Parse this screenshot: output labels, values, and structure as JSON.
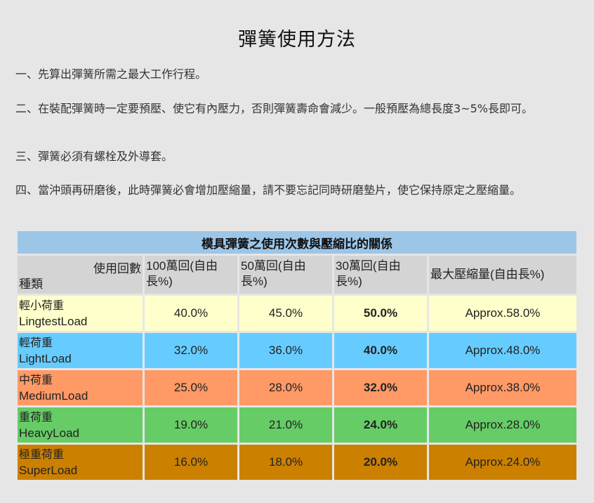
{
  "title": "彈簧使用方法",
  "paragraphs": [
    "一、先算出彈簧所需之最大工作行程。",
    "二、在裝配彈簧時一定要預壓、使它有內壓力，否則彈簧壽命會減少。一般預壓為總長度3~5%長即可。",
    "三、彈簧必須有螺栓及外導套。",
    "四、當沖頭再研磨後，此時彈簧必會增加壓縮量，請不要忘記同時研磨墊片，使它保持原定之壓縮量。"
  ],
  "table": {
    "caption": "模具彈簧之使用次數與壓縮比的關係",
    "corner_top": "使用回數",
    "corner_bottom": "種類",
    "headers": [
      "100萬回(自由長%)",
      "50萬回(自由長%)",
      "30萬回(自由長%)",
      "最大壓縮量(自由長%)"
    ],
    "rows": [
      {
        "name_cn": "輕小荷重",
        "name_en": "LingtestLoad",
        "values": [
          "40.0%",
          "45.0%",
          "50.0%",
          "Approx.58.0%"
        ],
        "color": "#ffffcc"
      },
      {
        "name_cn": "輕荷重",
        "name_en": "LightLoad",
        "values": [
          "32.0%",
          "36.0%",
          "40.0%",
          "Approx.48.0%"
        ],
        "color": "#66ccff"
      },
      {
        "name_cn": "中荷重",
        "name_en": "MediumLoad",
        "values": [
          "25.0%",
          "28.0%",
          "32.0%",
          "Approx.38.0%"
        ],
        "color": "#ff9966"
      },
      {
        "name_cn": "重荷重",
        "name_en": "HeavyLoad",
        "values": [
          "19.0%",
          "21.0%",
          "24.0%",
          "Approx.28.0%"
        ],
        "color": "#66cc66"
      },
      {
        "name_cn": "極重荷重",
        "name_en": "SuperLoad",
        "values": [
          "16.0%",
          "18.0%",
          "20.0%",
          "Approx.24.0%"
        ],
        "color": "#cc8000"
      }
    ]
  }
}
